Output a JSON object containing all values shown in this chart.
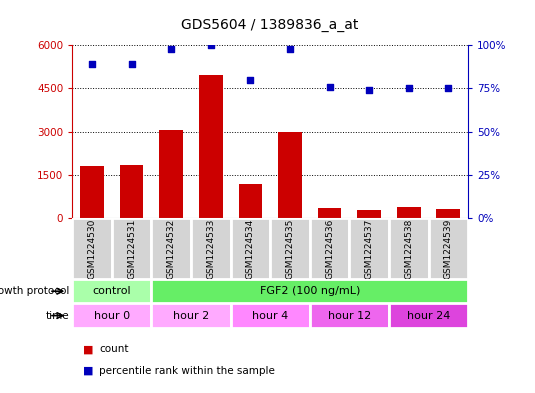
{
  "title": "GDS5604 / 1389836_a_at",
  "samples": [
    "GSM1224530",
    "GSM1224531",
    "GSM1224532",
    "GSM1224533",
    "GSM1224534",
    "GSM1224535",
    "GSM1224536",
    "GSM1224537",
    "GSM1224538",
    "GSM1224539"
  ],
  "counts": [
    1800,
    1850,
    3050,
    4950,
    1200,
    3000,
    350,
    270,
    370,
    300
  ],
  "percentile_ranks": [
    89,
    89,
    98,
    100,
    80,
    98,
    76,
    74,
    75,
    75
  ],
  "bar_color": "#cc0000",
  "dot_color": "#0000bb",
  "ylim_left": [
    0,
    6000
  ],
  "ylim_right": [
    0,
    100
  ],
  "yticks_left": [
    0,
    1500,
    3000,
    4500,
    6000
  ],
  "yticks_right": [
    0,
    25,
    50,
    75,
    100
  ],
  "ytick_labels_left": [
    "0",
    "1500",
    "3000",
    "4500",
    "6000"
  ],
  "ytick_labels_right": [
    "0%",
    "25%",
    "50%",
    "75%",
    "100%"
  ],
  "growth_protocol_label": "growth protocol",
  "growth_protocol_groups": [
    {
      "text": "control",
      "start": 0,
      "end": 2,
      "color": "#aaffaa"
    },
    {
      "text": "FGF2 (100 ng/mL)",
      "start": 2,
      "end": 10,
      "color": "#66ee66"
    }
  ],
  "time_label": "time",
  "time_groups": [
    {
      "text": "hour 0",
      "start": 0,
      "end": 2,
      "color": "#ffaaff"
    },
    {
      "text": "hour 2",
      "start": 2,
      "end": 4,
      "color": "#ffaaff"
    },
    {
      "text": "hour 4",
      "start": 4,
      "end": 6,
      "color": "#ff88ff"
    },
    {
      "text": "hour 12",
      "start": 6,
      "end": 8,
      "color": "#ee66ee"
    },
    {
      "text": "hour 24",
      "start": 8,
      "end": 10,
      "color": "#dd44dd"
    }
  ],
  "legend_count_color": "#cc0000",
  "legend_rank_color": "#0000bb",
  "background_color": "#ffffff",
  "left_axis_color": "#cc0000",
  "right_axis_color": "#0000bb",
  "sample_box_color": "#d4d4d4",
  "sample_box_edge": "#ffffff"
}
